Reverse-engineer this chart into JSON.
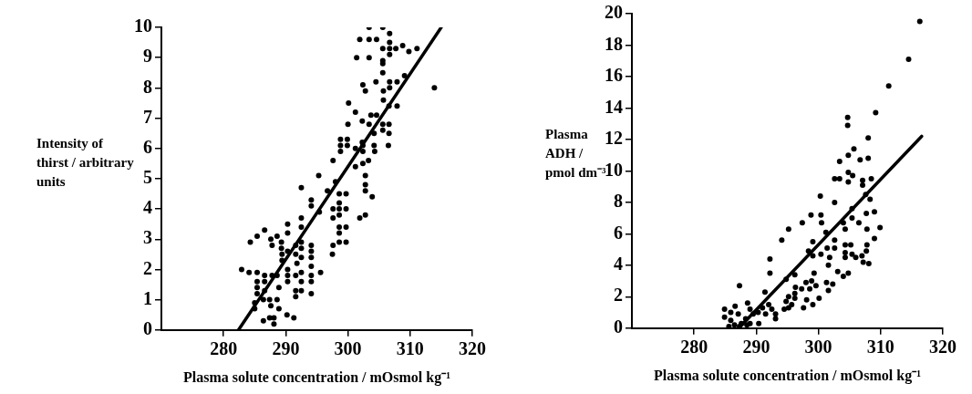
{
  "chart_data": [
    {
      "type": "scatter",
      "xlabel": "Plasma solute concentration / mOsmol kg⁻¹",
      "ylabel": "Intensity of thirst / arbitrary units",
      "xlim": [
        270,
        320
      ],
      "xticks": [
        280,
        290,
        300,
        310,
        320
      ],
      "ylim": [
        0,
        10
      ],
      "yticks": [
        0,
        1,
        2,
        3,
        4,
        5,
        6,
        7,
        8,
        9,
        10
      ],
      "grid": false,
      "marker": "circle",
      "series": [
        {
          "type": "scatter",
          "color": "#000000",
          "x": [
            303.4,
            305.6,
            301.9,
            303.4,
            304.6,
            306.7,
            306.7,
            305.6,
            306.7,
            307.7,
            308.8,
            309.8,
            311.1,
            301.4,
            303.4,
            305.6,
            306.7,
            305.6,
            305.6,
            309.1,
            302.4,
            302.8,
            304.5,
            305.7,
            306.7,
            307.9,
            306.7,
            313.9,
            300.1,
            301.2,
            303.7,
            304.6,
            305.7,
            306.6,
            307.9,
            302.3,
            300.0,
            303.4,
            305.6,
            306.6,
            304.2,
            305.6,
            306.6,
            298.8,
            299.9,
            302.3,
            298.8,
            299.9,
            302.4,
            304.2,
            306.5,
            298.8,
            301.2,
            302.4,
            304.3,
            297.6,
            303.3,
            301.2,
            302.4,
            295.3,
            298.0,
            296.7,
            302.8,
            302.8,
            302.8,
            303.9,
            292.5,
            294.1,
            298.6,
            298.6,
            299.7,
            294.1,
            297.6,
            298.6,
            299.7,
            295.4,
            297.6,
            298.6,
            301.9,
            302.8,
            292.5,
            298.6,
            299.7,
            298.6,
            292.5,
            290.3,
            290.3,
            286.6,
            285.4,
            284.3,
            287.6,
            288.6,
            289.3,
            292.5,
            291.6,
            292.5,
            294.1,
            297.6,
            298.6,
            299.7,
            287.8,
            289.3,
            290.3,
            289.4,
            291.6,
            294.1,
            294.1,
            297.5,
            292.5,
            289.4,
            291.8,
            294.1,
            282.9,
            284.1,
            285.4,
            295.6,
            290.3,
            290.3,
            291.6,
            292.5,
            286.6,
            287.8,
            288.6,
            294.1,
            290.3,
            285.4,
            286.6,
            294.1,
            292.5,
            288.9,
            285.4,
            285.4,
            286.6,
            291.6,
            292.5,
            294.1,
            291.6,
            286.4,
            287.4,
            288.6,
            287.6,
            285.0,
            288.9,
            285.0,
            290.2,
            291.3,
            287.4,
            288.1,
            286.4,
            288.1
          ],
          "values": [
            10.0,
            10.0,
            9.6,
            9.6,
            9.6,
            9.8,
            9.5,
            9.3,
            9.3,
            9.3,
            9.4,
            9.2,
            9.3,
            9.0,
            9.0,
            8.9,
            9.1,
            8.8,
            8.5,
            8.4,
            8.1,
            7.9,
            8.2,
            7.9,
            8.2,
            8.2,
            8.0,
            8.0,
            7.5,
            7.2,
            7.1,
            7.1,
            7.6,
            7.4,
            7.4,
            6.9,
            6.8,
            6.8,
            6.8,
            6.8,
            6.5,
            6.6,
            6.5,
            6.3,
            6.3,
            6.2,
            6.1,
            6.1,
            6.1,
            6.1,
            6.1,
            5.9,
            6.0,
            5.9,
            5.9,
            5.6,
            5.6,
            5.4,
            5.5,
            5.1,
            4.9,
            4.6,
            5.1,
            4.8,
            4.6,
            4.4,
            4.7,
            4.3,
            4.5,
            4.2,
            4.5,
            4.1,
            4.0,
            4.0,
            4.0,
            3.9,
            3.7,
            3.8,
            3.7,
            3.8,
            3.7,
            3.4,
            3.4,
            3.2,
            3.4,
            3.5,
            3.2,
            3.3,
            3.1,
            2.9,
            3.0,
            3.1,
            2.9,
            2.9,
            2.8,
            2.7,
            2.8,
            2.8,
            2.9,
            2.9,
            2.8,
            2.7,
            2.6,
            2.5,
            2.5,
            2.6,
            2.4,
            2.5,
            2.4,
            2.3,
            2.2,
            2.1,
            2.0,
            1.9,
            1.9,
            1.9,
            2.0,
            1.8,
            1.8,
            1.9,
            1.8,
            1.8,
            1.8,
            1.8,
            1.6,
            1.6,
            1.6,
            1.6,
            1.6,
            1.4,
            1.4,
            1.2,
            1.3,
            1.3,
            1.3,
            1.2,
            1.1,
            1.0,
            1.0,
            1.0,
            0.8,
            0.9,
            0.7,
            0.7,
            0.5,
            0.4,
            0.4,
            0.4,
            0.3,
            0.2
          ]
        },
        {
          "type": "line",
          "color": "#000000",
          "marker": "none",
          "x": [
            282.4,
            315.0
          ],
          "values": [
            0,
            10
          ]
        }
      ]
    },
    {
      "type": "scatter",
      "xlabel": "Plasma solute concentration / mOsmol kg⁻¹",
      "ylabel": "Plasma ADH / pmol dm⁻³",
      "xlim": [
        270,
        320
      ],
      "xticks": [
        280,
        290,
        300,
        310,
        320
      ],
      "ylim": [
        0,
        20
      ],
      "yticks": [
        0,
        2,
        4,
        6,
        8,
        10,
        12,
        14,
        16,
        18,
        20
      ],
      "grid": false,
      "marker": "circle",
      "series": [
        {
          "type": "scatter",
          "color": "#000000",
          "x": [
            316.3,
            314.5,
            311.3,
            309.2,
            304.7,
            304.7,
            308.0,
            305.7,
            304.8,
            306.7,
            308.0,
            303.4,
            304.8,
            305.5,
            302.6,
            303.4,
            304.8,
            307.1,
            308.5,
            307.1,
            300.3,
            302.6,
            307.6,
            308.3,
            305.4,
            298.8,
            300.4,
            307.7,
            309.0,
            297.4,
            300.5,
            304.0,
            305.4,
            306.5,
            295.2,
            304.3,
            307.8,
            309.9,
            301.2,
            294.1,
            299.1,
            302.6,
            309.0,
            298.4,
            300.4,
            299.1,
            301.4,
            302.6,
            304.3,
            305.2,
            307.8,
            301.8,
            301.6,
            304.3,
            305.4,
            304.3,
            306.0,
            307.0,
            307.7,
            307.2,
            308.1,
            292.2,
            292.2,
            296.2,
            294.8,
            303.1,
            304.8,
            304.0,
            299.3,
            298.0,
            298.9,
            299.6,
            301.3,
            302.3,
            301.6,
            296.3,
            297.3,
            298.6,
            300.1,
            298.1,
            299.1,
            297.6,
            296.2,
            296.2,
            295.2,
            294.8,
            295.7,
            294.5,
            295.2,
            291.4,
            287.3,
            284.9,
            285.9,
            286.6,
            284.9,
            285.9,
            287.1,
            287.6,
            288.3,
            288.6,
            289.0,
            289.5,
            290.3,
            290.4,
            291.0,
            291.5,
            292.0,
            292.5,
            293.1,
            293.1,
            286.5,
            287.3,
            285.6,
            289.0,
            288.5
          ],
          "values": [
            19.5,
            17.1,
            15.4,
            13.7,
            13.4,
            12.9,
            12.1,
            11.4,
            11.0,
            10.7,
            10.8,
            10.6,
            9.9,
            9.7,
            9.5,
            9.5,
            9.3,
            9.4,
            9.5,
            9.1,
            8.4,
            8.0,
            8.5,
            8.2,
            7.6,
            7.2,
            7.2,
            7.3,
            7.4,
            6.7,
            6.7,
            6.7,
            7.0,
            6.7,
            6.3,
            6.3,
            6.3,
            6.4,
            6.1,
            5.6,
            5.5,
            5.6,
            5.7,
            4.9,
            4.7,
            4.6,
            5.1,
            5.1,
            5.3,
            5.3,
            5.3,
            4.5,
            4.0,
            4.8,
            4.7,
            4.5,
            4.5,
            4.6,
            4.9,
            4.2,
            4.1,
            4.4,
            3.5,
            3.4,
            3.1,
            3.6,
            3.5,
            3.3,
            3.5,
            2.9,
            3.0,
            2.7,
            2.9,
            2.8,
            2.4,
            2.6,
            2.5,
            2.5,
            1.9,
            1.8,
            1.5,
            1.3,
            2.2,
            1.9,
            2.0,
            1.7,
            1.5,
            1.2,
            1.3,
            2.3,
            2.7,
            1.2,
            1.0,
            1.4,
            0.7,
            0.5,
            0.9,
            0.3,
            0.6,
            1.6,
            1.2,
            0.9,
            1.0,
            0.3,
            1.3,
            0.9,
            1.5,
            1.2,
            0.9,
            0.6,
            0.2,
            0.1,
            0.1,
            0.3,
            0.2
          ]
        },
        {
          "type": "line",
          "color": "#000000",
          "marker": "none",
          "x": [
            287.2,
            316.6
          ],
          "values": [
            0,
            12.2
          ]
        }
      ]
    }
  ]
}
